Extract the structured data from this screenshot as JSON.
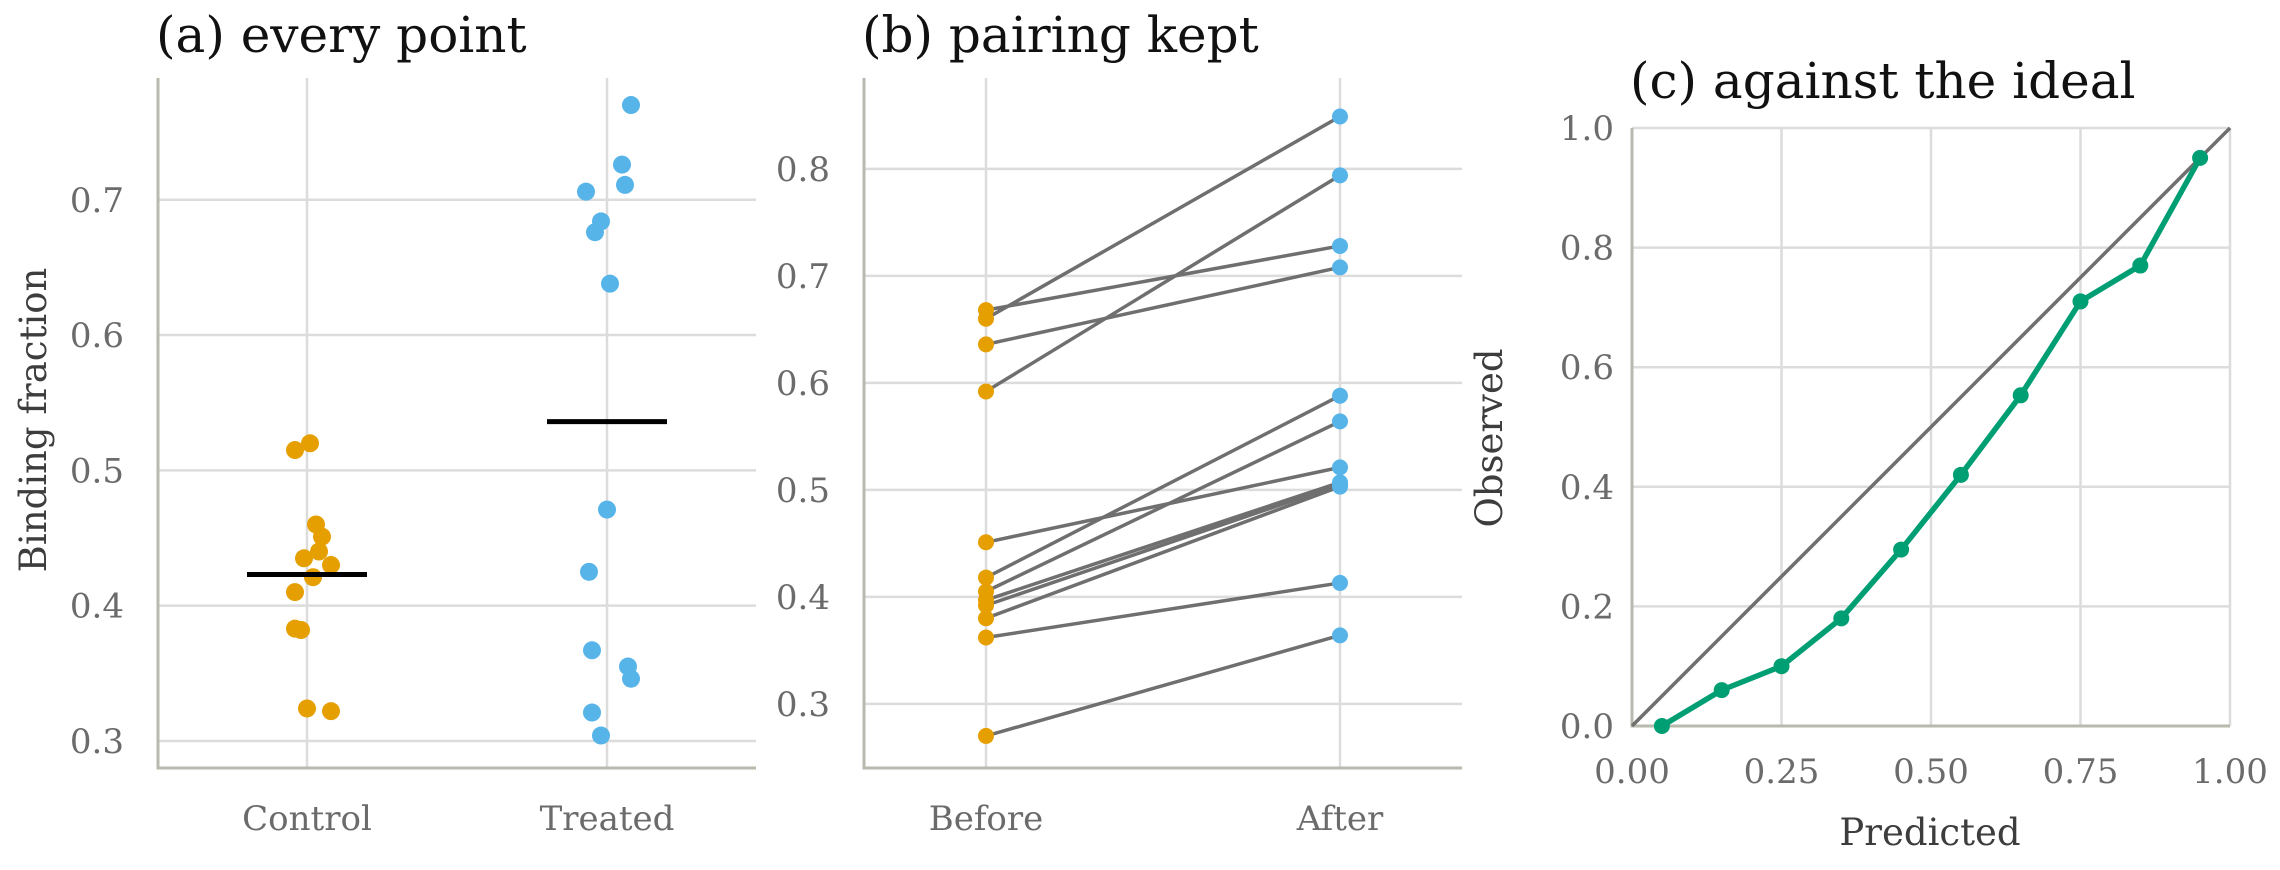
{
  "chart_data": [
    {
      "type": "scatter",
      "title": "(a) every point",
      "xlabel": "",
      "ylabel": "Binding fraction",
      "categories": [
        "Control",
        "Treated"
      ],
      "ylim": [
        0.28,
        0.79
      ],
      "yticks": [
        0.3,
        0.4,
        0.5,
        0.6,
        0.7
      ],
      "grid": true,
      "colors": {
        "Control": "#E69F00",
        "Treated": "#56B4E9",
        "mean": "#000000"
      },
      "series": [
        {
          "category": "Control",
          "points": [
            {
              "jitter": -0.04,
              "y": 0.515
            },
            {
              "jitter": 0.01,
              "y": 0.52
            },
            {
              "jitter": 0.03,
              "y": 0.46
            },
            {
              "jitter": 0.05,
              "y": 0.451
            },
            {
              "jitter": 0.04,
              "y": 0.44
            },
            {
              "jitter": -0.01,
              "y": 0.435
            },
            {
              "jitter": 0.08,
              "y": 0.43
            },
            {
              "jitter": 0.02,
              "y": 0.421
            },
            {
              "jitter": -0.04,
              "y": 0.41
            },
            {
              "jitter": -0.04,
              "y": 0.383
            },
            {
              "jitter": -0.02,
              "y": 0.382
            },
            {
              "jitter": 0.0,
              "y": 0.324
            },
            {
              "jitter": 0.08,
              "y": 0.322
            }
          ],
          "mean": 0.423
        },
        {
          "category": "Treated",
          "points": [
            {
              "jitter": 0.08,
              "y": 0.77
            },
            {
              "jitter": 0.05,
              "y": 0.726
            },
            {
              "jitter": 0.06,
              "y": 0.711
            },
            {
              "jitter": -0.07,
              "y": 0.706
            },
            {
              "jitter": -0.02,
              "y": 0.684
            },
            {
              "jitter": -0.04,
              "y": 0.676
            },
            {
              "jitter": 0.01,
              "y": 0.638
            },
            {
              "jitter": 0.0,
              "y": 0.471
            },
            {
              "jitter": -0.06,
              "y": 0.425
            },
            {
              "jitter": -0.05,
              "y": 0.367
            },
            {
              "jitter": 0.07,
              "y": 0.355
            },
            {
              "jitter": 0.08,
              "y": 0.346
            },
            {
              "jitter": -0.05,
              "y": 0.321
            },
            {
              "jitter": -0.02,
              "y": 0.304
            }
          ],
          "mean": 0.536
        }
      ]
    },
    {
      "type": "line",
      "title": "(b) pairing kept",
      "xlabel": "",
      "ylabel": "",
      "categories": [
        "Before",
        "After"
      ],
      "ylim": [
        0.24,
        0.885
      ],
      "yticks": [
        0.3,
        0.4,
        0.5,
        0.6,
        0.7,
        0.8
      ],
      "grid": true,
      "colors": {
        "Before": "#E69F00",
        "After": "#56B4E9",
        "line": "#6f6f6f"
      },
      "pairs": [
        {
          "before": 0.66,
          "after": 0.849
        },
        {
          "before": 0.592,
          "after": 0.794
        },
        {
          "before": 0.668,
          "after": 0.728
        },
        {
          "before": 0.636,
          "after": 0.708
        },
        {
          "before": 0.418,
          "after": 0.588
        },
        {
          "before": 0.405,
          "after": 0.564
        },
        {
          "before": 0.451,
          "after": 0.521
        },
        {
          "before": 0.397,
          "after": 0.507
        },
        {
          "before": 0.38,
          "after": 0.503
        },
        {
          "before": 0.392,
          "after": 0.505
        },
        {
          "before": 0.362,
          "after": 0.413
        },
        {
          "before": 0.27,
          "after": 0.364
        }
      ]
    },
    {
      "type": "line",
      "title": "(c) against the ideal",
      "xlabel": "Predicted",
      "ylabel": "Observed",
      "xlim": [
        0,
        1
      ],
      "ylim": [
        0,
        1
      ],
      "xticks": [
        0,
        0.25,
        0.5,
        0.75,
        1
      ],
      "xtick_labels": [
        "0.00",
        "0.25",
        "0.50",
        "0.75",
        "1.00"
      ],
      "yticks": [
        0,
        0.2,
        0.4,
        0.6,
        0.8,
        1
      ],
      "ytick_labels": [
        "0.0",
        "0.2",
        "0.4",
        "0.6",
        "0.8",
        "1.0"
      ],
      "grid": true,
      "colors": {
        "curve": "#009E73",
        "ideal": "#6f6f6f"
      },
      "ideal_line": [
        [
          0,
          0
        ],
        [
          1,
          1
        ]
      ],
      "x": [
        0.05,
        0.15,
        0.25,
        0.35,
        0.45,
        0.55,
        0.65,
        0.75,
        0.85,
        0.95
      ],
      "y": [
        0.0,
        0.06,
        0.1,
        0.18,
        0.295,
        0.42,
        0.553,
        0.71,
        0.77,
        0.95
      ]
    }
  ]
}
